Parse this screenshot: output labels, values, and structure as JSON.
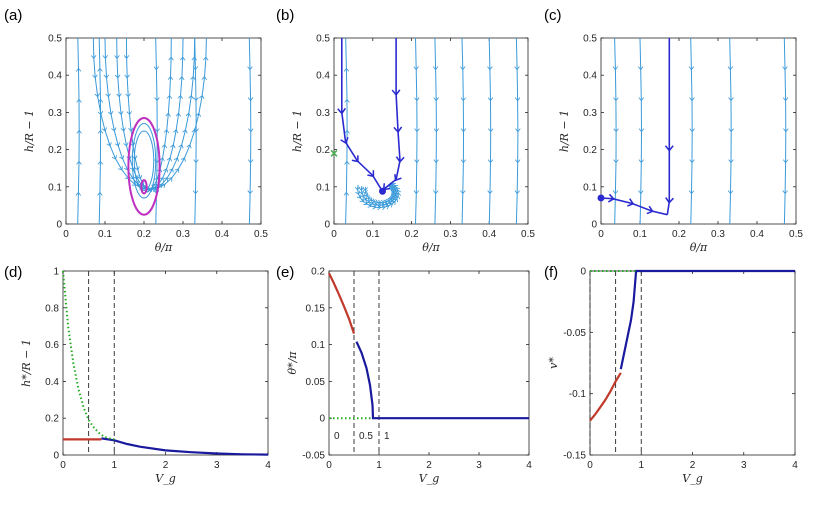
{
  "chart_data": [
    {
      "panel": "(a)",
      "type": "streamplot",
      "xlabel": "θ/π",
      "ylabel": "h/R − 1",
      "xlim": [
        0,
        0.5
      ],
      "ylim": [
        0,
        0.5
      ],
      "xticks": [
        "0",
        "0.1",
        "0.2",
        "0.3",
        "0.4",
        "0.5"
      ],
      "yticks": [
        "0",
        "0.1",
        "0.2",
        "0.3",
        "0.4",
        "0.5"
      ],
      "closed_orbits": [
        {
          "center": [
            0.2,
            0.1
          ],
          "half_width": 0.007,
          "half_height": 0.018,
          "color": "#C030C0"
        },
        {
          "center": [
            0.2,
            0.155
          ],
          "half_width": 0.04,
          "half_height": 0.13,
          "color": "#C030C0"
        }
      ],
      "colors": {
        "stream": "#3A9AD9",
        "orbit": "#C030C0"
      }
    },
    {
      "panel": "(b)",
      "type": "streamplot",
      "xlabel": "θ/π",
      "ylabel": "h/R − 1",
      "xlim": [
        0,
        0.5
      ],
      "ylim": [
        0,
        0.5
      ],
      "xticks": [
        "0",
        "0.1",
        "0.2",
        "0.3",
        "0.4",
        "0.5"
      ],
      "yticks": [
        "0",
        "0.1",
        "0.2",
        "0.3",
        "0.4",
        "0.5"
      ],
      "fixed_point": [
        0.125,
        0.088
      ],
      "saddle_marker": [
        0.0,
        0.19
      ],
      "separatrices": [
        {
          "x": [
            0.02,
            0.02,
            0.03,
            0.06,
            0.1,
            0.125
          ],
          "y": [
            0.5,
            0.3,
            0.22,
            0.17,
            0.13,
            0.088
          ]
        },
        {
          "x": [
            0.16,
            0.16,
            0.165,
            0.17,
            0.16,
            0.13,
            0.125
          ],
          "y": [
            0.5,
            0.35,
            0.25,
            0.17,
            0.12,
            0.095,
            0.088
          ]
        }
      ],
      "colors": {
        "stream": "#3A9AD9",
        "separatrix": "#2A2AD0",
        "saddle": "#4CAF50"
      }
    },
    {
      "panel": "(c)",
      "type": "streamplot",
      "xlabel": "θ/π",
      "ylabel": "h/R − 1",
      "xlim": [
        0,
        0.5
      ],
      "ylim": [
        0,
        0.5
      ],
      "xticks": [
        "0",
        "0.1",
        "0.2",
        "0.3",
        "0.4",
        "0.5"
      ],
      "yticks": [
        "0",
        "0.1",
        "0.2",
        "0.3",
        "0.4",
        "0.5"
      ],
      "fixed_point": [
        0.0,
        0.07
      ],
      "separatrices": [
        {
          "x": [
            0.0,
            0.03,
            0.08,
            0.13,
            0.17
          ],
          "y": [
            0.07,
            0.068,
            0.055,
            0.035,
            0.025
          ]
        },
        {
          "x": [
            0.175,
            0.175,
            0.175,
            0.17
          ],
          "y": [
            0.5,
            0.2,
            0.06,
            0.025
          ]
        }
      ],
      "colors": {
        "stream": "#3A9AD9",
        "separatrix": "#2A2AD0"
      }
    },
    {
      "panel": "(d)",
      "type": "line",
      "xlabel": "V_g",
      "ylabel": "h*/R − 1",
      "xlim": [
        0,
        4
      ],
      "ylim": [
        0,
        1
      ],
      "xticks": [
        "0",
        "1",
        "2",
        "3",
        "4"
      ],
      "yticks": [
        "0",
        "0.2",
        "0.4",
        "0.6",
        "0.8",
        "1"
      ],
      "vlines": [
        0.5,
        1
      ],
      "series": [
        {
          "name": "red branch",
          "color": "#C0392B",
          "style": "solid",
          "x": [
            0,
            0.5,
            0.6,
            0.75
          ],
          "y": [
            0.085,
            0.085,
            0.085,
            0.085
          ]
        },
        {
          "name": "blue branch",
          "color": "#1A1A9E",
          "style": "solid",
          "x": [
            0.75,
            1,
            1.25,
            1.5,
            2,
            2.5,
            3,
            3.5,
            4
          ],
          "y": [
            0.09,
            0.08,
            0.06,
            0.045,
            0.025,
            0.015,
            0.008,
            0.004,
            0.002
          ]
        },
        {
          "name": "green branch",
          "color": "#22AA22",
          "style": "dotted",
          "x": [
            0,
            0.1,
            0.2,
            0.3,
            0.4,
            0.5,
            0.6,
            0.7,
            0.8,
            0.9,
            1.0
          ],
          "y": [
            1.0,
            0.7,
            0.5,
            0.36,
            0.26,
            0.19,
            0.15,
            0.12,
            0.1,
            0.09,
            0.085
          ]
        }
      ]
    },
    {
      "panel": "(e)",
      "type": "line",
      "xlabel": "V_g",
      "ylabel": "θ*/π",
      "xlim": [
        0,
        4
      ],
      "ylim": [
        -0.05,
        0.2
      ],
      "xticks": [
        "0",
        "1",
        "2",
        "3",
        "4"
      ],
      "yticks": [
        "-0.05",
        "0",
        "0.05",
        "0.1",
        "0.15",
        "0.2"
      ],
      "vlines": [
        0.5,
        1
      ],
      "annotations": [
        "0",
        "0.5",
        "1"
      ],
      "series": [
        {
          "name": "red branch",
          "color": "#C0392B",
          "style": "solid",
          "x": [
            0,
            0.1,
            0.2,
            0.3,
            0.4,
            0.5
          ],
          "y": [
            0.197,
            0.183,
            0.168,
            0.152,
            0.135,
            0.115
          ]
        },
        {
          "name": "blue branch",
          "color": "#1A1A9E",
          "style": "solid",
          "x": [
            0.55,
            0.65,
            0.75,
            0.82,
            0.87,
            0.88,
            4
          ],
          "y": [
            0.104,
            0.089,
            0.068,
            0.045,
            0.018,
            0,
            0
          ]
        },
        {
          "name": "green branch",
          "color": "#22AA22",
          "style": "dotted",
          "x": [
            0,
            0.88
          ],
          "y": [
            0,
            0
          ]
        }
      ]
    },
    {
      "panel": "(f)",
      "type": "line",
      "xlabel": "V_g",
      "ylabel": "v*",
      "xlim": [
        0,
        4
      ],
      "ylim": [
        -0.15,
        0
      ],
      "xticks": [
        "0",
        "1",
        "2",
        "3",
        "4"
      ],
      "yticks": [
        "-0.15",
        "-0.1",
        "-0.05",
        "0"
      ],
      "vlines": [
        0,
        0.5,
        1
      ],
      "series": [
        {
          "name": "red branch",
          "color": "#C0392B",
          "style": "solid",
          "x": [
            0,
            0.1,
            0.2,
            0.3,
            0.4,
            0.5,
            0.6
          ],
          "y": [
            -0.122,
            -0.117,
            -0.111,
            -0.105,
            -0.098,
            -0.09,
            -0.083
          ]
        },
        {
          "name": "blue branch",
          "color": "#1A1A9E",
          "style": "solid",
          "x": [
            0.6,
            0.7,
            0.8,
            0.85,
            0.88,
            0.9,
            4
          ],
          "y": [
            -0.08,
            -0.06,
            -0.04,
            -0.025,
            -0.01,
            0,
            0
          ]
        },
        {
          "name": "green branch",
          "color": "#22AA22",
          "style": "dotted",
          "x": [
            0,
            0.9
          ],
          "y": [
            0,
            0
          ]
        }
      ]
    }
  ]
}
